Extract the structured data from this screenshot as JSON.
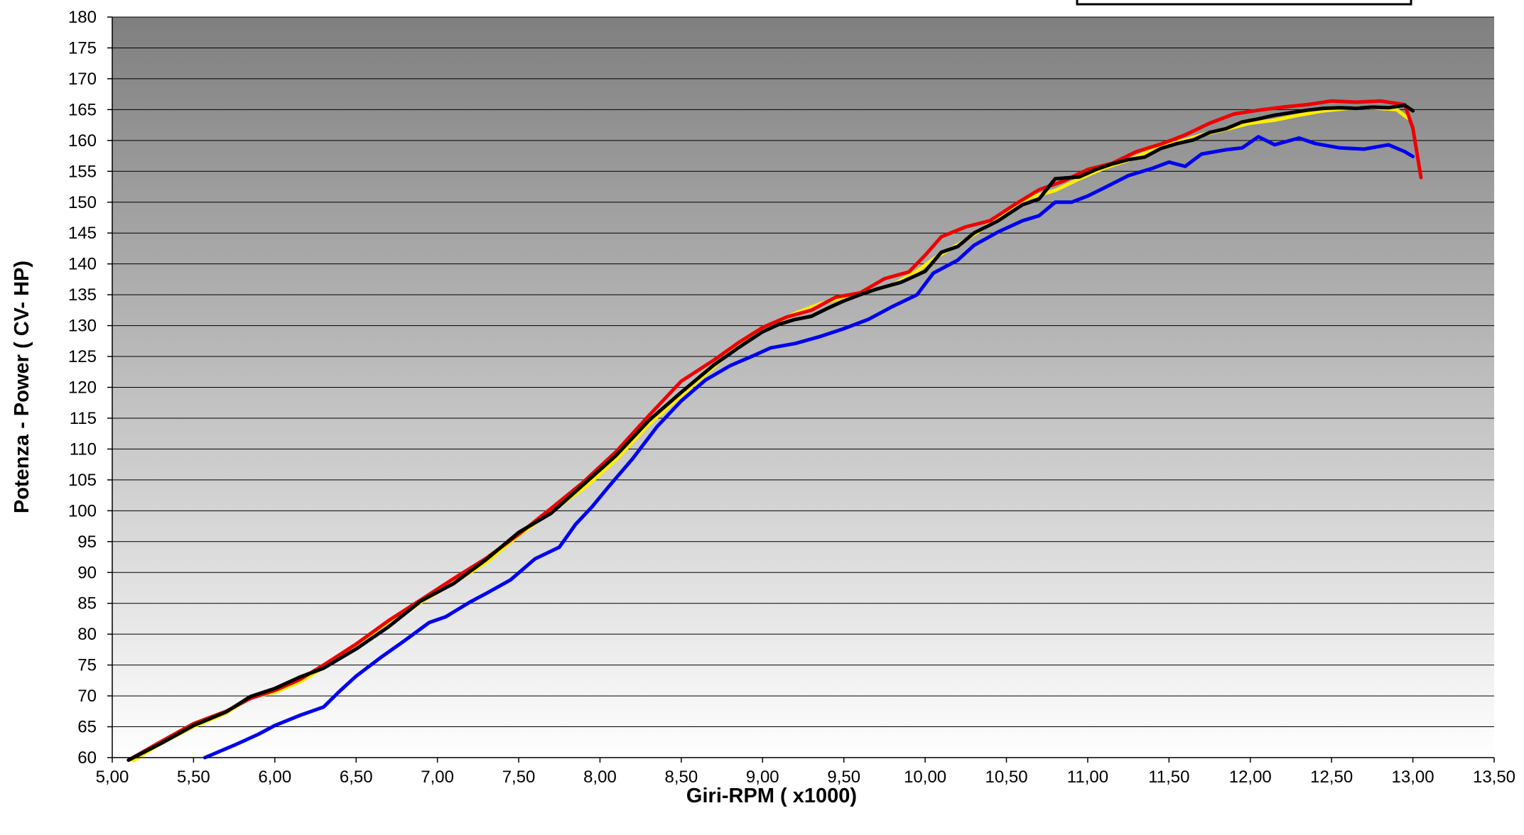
{
  "chart_data": {
    "type": "line",
    "title": "",
    "xlabel": "Giri-RPM ( x1000)",
    "ylabel": "Potenza - Power ( CV- HP)",
    "xlim": [
      5.0,
      13.5
    ],
    "ylim": [
      60,
      180
    ],
    "x_ticks": [
      5.0,
      5.5,
      6.0,
      6.5,
      7.0,
      7.5,
      8.0,
      8.5,
      9.0,
      9.5,
      10.0,
      10.5,
      11.0,
      11.5,
      12.0,
      12.5,
      13.0,
      13.5
    ],
    "x_tick_labels": [
      "5,00",
      "5,50",
      "6,00",
      "6,50",
      "7,00",
      "7,50",
      "8,00",
      "8,50",
      "9,00",
      "9,50",
      "10,00",
      "10,50",
      "11,00",
      "11,50",
      "12,00",
      "12,50",
      "13,00",
      "13,50"
    ],
    "y_ticks": [
      60,
      65,
      70,
      75,
      80,
      85,
      90,
      95,
      100,
      105,
      110,
      115,
      120,
      125,
      130,
      135,
      140,
      145,
      150,
      155,
      160,
      165,
      170,
      175,
      180
    ],
    "y_tick_labels": [
      "60",
      "65",
      "70",
      "75",
      "80",
      "85",
      "90",
      "95",
      "100",
      "105",
      "110",
      "115",
      "120",
      "125",
      "130",
      "135",
      "140",
      "145",
      "150",
      "155",
      "160",
      "165",
      "170",
      "175",
      "180"
    ],
    "grid": true,
    "legend": "top-right (empty box)",
    "background": "vertical gradient, dark gray top to white bottom",
    "series": [
      {
        "color": "#0000ee",
        "x": [
          5.57,
          5.75,
          5.9,
          6.0,
          6.15,
          6.3,
          6.4,
          6.5,
          6.65,
          6.8,
          6.95,
          7.05,
          7.2,
          7.3,
          7.45,
          7.6,
          7.75,
          7.85,
          7.95,
          8.05,
          8.2,
          8.35,
          8.5,
          8.65,
          8.8,
          8.95,
          9.05,
          9.2,
          9.35,
          9.5,
          9.65,
          9.8,
          9.95,
          10.05,
          10.2,
          10.3,
          10.45,
          10.6,
          10.7,
          10.8,
          10.9,
          11.0,
          11.1,
          11.25,
          11.4,
          11.5,
          11.6,
          11.7,
          11.85,
          11.95,
          12.05,
          12.15,
          12.3,
          12.4,
          12.55,
          12.7,
          12.85,
          12.95,
          13.0
        ],
        "y": [
          60.0,
          62.0,
          63.8,
          65.2,
          66.8,
          68.2,
          70.8,
          73.2,
          76.2,
          79.0,
          81.9,
          82.8,
          85.2,
          86.6,
          88.8,
          92.2,
          94.1,
          97.8,
          100.6,
          103.8,
          108.4,
          113.6,
          117.8,
          121.2,
          123.5,
          125.2,
          126.4,
          127.1,
          128.2,
          129.5,
          131.0,
          133.1,
          135.0,
          138.5,
          140.6,
          143.0,
          145.2,
          147.0,
          147.8,
          150.0,
          150.0,
          151.0,
          152.3,
          154.3,
          155.5,
          156.5,
          155.8,
          157.8,
          158.5,
          158.8,
          160.6,
          159.3,
          160.4,
          159.5,
          158.8,
          158.6,
          159.3,
          158.2,
          157.4
        ]
      },
      {
        "color": "#ffee00",
        "x": [
          5.13,
          5.3,
          5.5,
          5.7,
          5.85,
          6.0,
          6.15,
          6.3,
          6.5,
          6.7,
          6.9,
          7.1,
          7.3,
          7.5,
          7.7,
          7.9,
          8.1,
          8.3,
          8.5,
          8.7,
          8.9,
          9.05,
          9.2,
          9.35,
          9.5,
          9.65,
          9.8,
          9.95,
          10.05,
          10.2,
          10.35,
          10.5,
          10.65,
          10.8,
          10.95,
          11.1,
          11.25,
          11.4,
          11.55,
          11.7,
          11.85,
          12.0,
          12.15,
          12.3,
          12.45,
          12.6,
          12.75,
          12.9,
          12.97
        ],
        "y": [
          59.5,
          62.3,
          65.0,
          67.2,
          69.8,
          70.6,
          72.2,
          74.6,
          77.8,
          81.6,
          85.2,
          88.3,
          91.6,
          96.0,
          99.9,
          103.6,
          108.3,
          114.0,
          118.7,
          123.3,
          128.0,
          130.0,
          132.0,
          133.5,
          134.6,
          135.5,
          136.6,
          138.8,
          140.8,
          143.1,
          145.6,
          148.6,
          150.8,
          151.9,
          153.8,
          155.5,
          156.8,
          158.5,
          159.7,
          160.9,
          161.8,
          162.8,
          163.3,
          164.1,
          164.8,
          165.2,
          165.3,
          165.0,
          163.6
        ]
      },
      {
        "color": "#ee0000",
        "x": [
          5.1,
          5.3,
          5.5,
          5.7,
          5.85,
          6.0,
          6.15,
          6.3,
          6.5,
          6.7,
          6.9,
          7.1,
          7.3,
          7.5,
          7.7,
          7.9,
          8.1,
          8.3,
          8.5,
          8.7,
          8.85,
          9.0,
          9.15,
          9.3,
          9.45,
          9.6,
          9.75,
          9.9,
          10.0,
          10.1,
          10.25,
          10.4,
          10.55,
          10.7,
          10.85,
          11.0,
          11.15,
          11.3,
          11.45,
          11.6,
          11.75,
          11.9,
          12.05,
          12.2,
          12.35,
          12.5,
          12.65,
          12.8,
          12.95,
          13.0,
          13.05
        ],
        "y": [
          59.6,
          62.6,
          65.5,
          67.5,
          69.6,
          70.9,
          72.6,
          75.0,
          78.4,
          82.2,
          85.6,
          89.0,
          92.3,
          96.2,
          100.4,
          104.7,
          109.6,
          115.4,
          121.0,
          124.4,
          127.2,
          129.7,
          131.4,
          132.5,
          134.6,
          135.3,
          137.6,
          138.7,
          141.4,
          144.4,
          146.0,
          147.0,
          149.6,
          152.0,
          153.4,
          155.3,
          156.3,
          158.2,
          159.4,
          160.9,
          162.8,
          164.3,
          164.9,
          165.4,
          165.8,
          166.4,
          166.2,
          166.4,
          165.8,
          162.0,
          154.0
        ]
      },
      {
        "color": "#000000",
        "x": [
          5.1,
          5.3,
          5.5,
          5.7,
          5.85,
          6.0,
          6.15,
          6.3,
          6.5,
          6.7,
          6.9,
          7.1,
          7.3,
          7.5,
          7.7,
          7.9,
          8.1,
          8.3,
          8.5,
          8.7,
          8.85,
          9.0,
          9.1,
          9.2,
          9.3,
          9.4,
          9.5,
          9.6,
          9.7,
          9.85,
          10.0,
          10.1,
          10.2,
          10.3,
          10.45,
          10.6,
          10.7,
          10.8,
          10.95,
          11.05,
          11.15,
          11.25,
          11.35,
          11.45,
          11.55,
          11.65,
          11.75,
          11.85,
          11.95,
          12.05,
          12.15,
          12.25,
          12.35,
          12.45,
          12.55,
          12.65,
          12.75,
          12.85,
          12.95,
          13.0
        ],
        "y": [
          59.6,
          62.3,
          65.2,
          67.4,
          69.9,
          71.2,
          73.0,
          74.5,
          77.6,
          81.2,
          85.4,
          88.2,
          92.1,
          96.5,
          99.6,
          104.3,
          109.0,
          114.6,
          119.2,
          123.6,
          126.4,
          129.0,
          130.2,
          131.0,
          131.5,
          132.8,
          134.0,
          135.0,
          135.9,
          137.0,
          138.8,
          141.9,
          142.8,
          145.0,
          147.0,
          149.6,
          150.5,
          153.8,
          154.1,
          155.3,
          156.2,
          156.9,
          157.3,
          158.7,
          159.5,
          160.1,
          161.3,
          161.9,
          163.0,
          163.5,
          164.1,
          164.5,
          164.9,
          165.2,
          165.3,
          165.2,
          165.4,
          165.3,
          165.7,
          164.8
        ]
      }
    ]
  }
}
